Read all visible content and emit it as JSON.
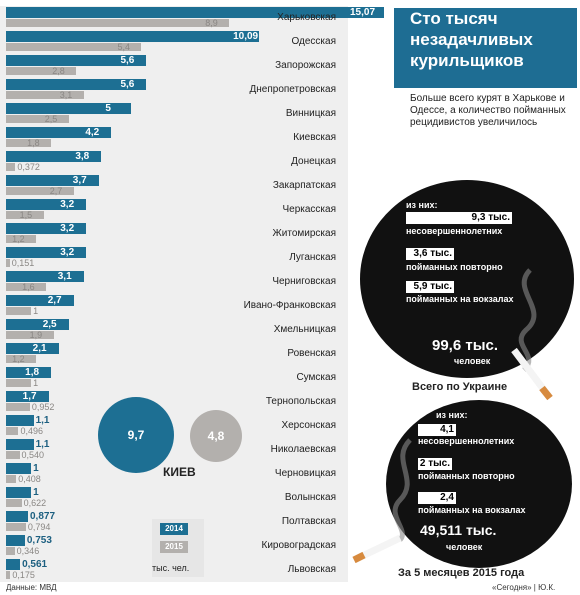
{
  "header": {
    "title": "Сто тысяч незадачливых курильщиков",
    "subtitle": "Больше всего курят в Харьковe и Одессе, а количество пойманных рецидивистов увеличилось"
  },
  "chart_data": {
    "type": "bar",
    "categories": [
      "Харьковская",
      "Одесская",
      "Запорожская",
      "Днепропетровская",
      "Винницкая",
      "Киевская",
      "Донецкая",
      "Закарпатская",
      "Черкасская",
      "Житомирская",
      "Луганская",
      "Черниговская",
      "Ивано-Франковская",
      "Хмельницкая",
      "Ровенская",
      "Сумская",
      "Тернопольская",
      "Херсонская",
      "Николаевская",
      "Черновицкая",
      "Волынская",
      "Полтавская",
      "Кировоградская",
      "Львовская"
    ],
    "series": [
      {
        "name": "2014",
        "values": [
          15.07,
          10.09,
          5.6,
          5.6,
          5,
          4.2,
          3.8,
          3.7,
          3.2,
          3.2,
          3.2,
          3.1,
          2.7,
          2.5,
          2.1,
          1.8,
          1.7,
          1.1,
          1.1,
          1,
          1,
          0.877,
          0.753,
          0.561
        ],
        "labels": [
          "15,07",
          "10,09",
          "5,6",
          "5,6",
          "5",
          "4,2",
          "3,8",
          "3,7",
          "3,2",
          "3,2",
          "3,2",
          "3,1",
          "2,7",
          "2,5",
          "2,1",
          "1,8",
          "1,7",
          "1,1",
          "1,1",
          "1",
          "1",
          "0,877",
          "0,753",
          "0,561"
        ]
      },
      {
        "name": "2015",
        "values": [
          8.9,
          5.4,
          2.8,
          3.1,
          2.5,
          1.8,
          0.372,
          2.7,
          1.5,
          1.2,
          0.151,
          1.6,
          1,
          1.9,
          1.2,
          1,
          0.952,
          0.496,
          0.54,
          0.408,
          0.622,
          0.794,
          0.346,
          0.175
        ],
        "labels": [
          "8,9",
          "5,4",
          "2,8",
          "3,1",
          "2,5",
          "1,8",
          "0,372",
          "2,7",
          "1,5",
          "1,2",
          "0,151",
          "1,6",
          "1",
          "1,9",
          "1,2",
          "1",
          "0,952",
          "0,496",
          "0,540",
          "0,408",
          "0,622",
          "0,794",
          "0,346",
          "0,175"
        ]
      }
    ],
    "kiev": {
      "label": "КИЕВ",
      "v2014": "9,7",
      "v2015": "4,8"
    },
    "legend": {
      "y2014": "2014",
      "y2015": "2015",
      "unit": "тыс. чел."
    },
    "colors": {
      "y2014": "#1d6f93",
      "y2015": "#b3b0ad"
    }
  },
  "circle_total": {
    "head": "из них:",
    "items": [
      {
        "value": "9,3 тыс.",
        "label": "несовершеннолетних"
      },
      {
        "value": "3,6 тыс.",
        "label": "пойманных повторно"
      },
      {
        "value": "5,9 тыс.",
        "label": "пойманных на вокзалах"
      }
    ],
    "total_value": "99,6 тыс.",
    "total_label": "человек",
    "caption": "Всего по Украине"
  },
  "circle_2015": {
    "head": "из них:",
    "items": [
      {
        "value": "4,1 тыс.",
        "label": "несовершеннолетних"
      },
      {
        "value": "2 тыс.",
        "label": "пойманных повторно"
      },
      {
        "value": "2,4 тыс.",
        "label": "пойманных на вокзалах"
      }
    ],
    "total_value": "49,511 тыс.",
    "total_label": "человек",
    "caption": "За 5 месяцев 2015 года"
  },
  "footer": {
    "source": "Данные: МВД",
    "credit": "«Сегодня» | Ю.К."
  }
}
